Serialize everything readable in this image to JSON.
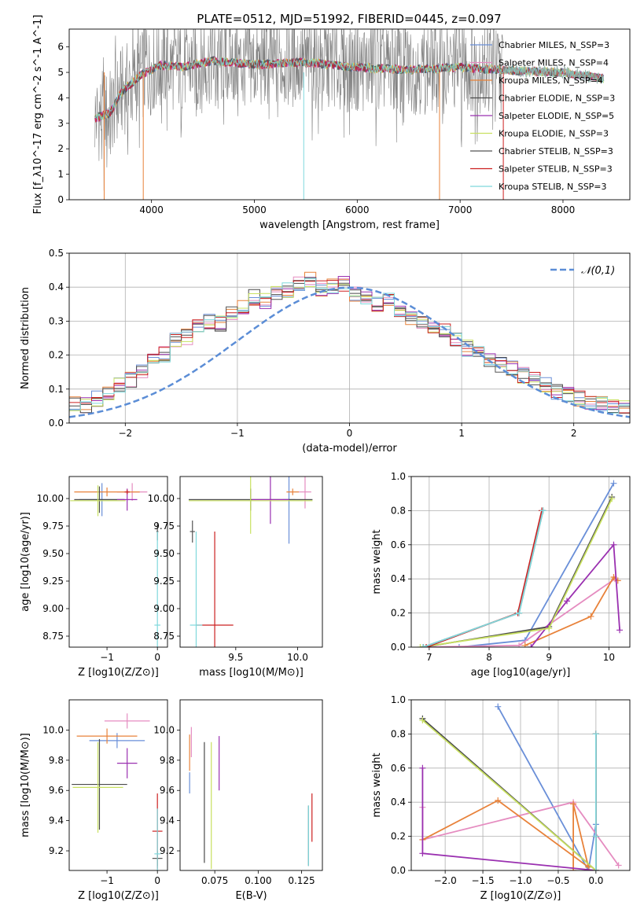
{
  "figure": {
    "title": "PLATE=0512, MJD=51992, FIBERID=0445, z=0.097"
  },
  "colors": {
    "model_1": "#6a8fd8",
    "model_2": "#e58cc0",
    "model_3": "#e8823a",
    "model_4": "#4a4a4a",
    "model_5": "#9a30b0",
    "model_6": "#c8e060",
    "model_7": "#555555",
    "model_8": "#cc2020",
    "model_9": "#7fd8dc",
    "data": "#808080"
  },
  "chart_data": [
    {
      "id": "spectrum",
      "type": "line",
      "xlabel": "wavelength [Angstrom, rest frame]",
      "ylabel": "Flux [f_λ10^-17 erg cm^-2 s^-1 A^-1]",
      "xlim": [
        3200,
        8650
      ],
      "ylim": [
        0,
        6.7
      ],
      "xticks": [
        4000,
        5000,
        6000,
        7000,
        8000
      ],
      "yticks": [
        0,
        1,
        2,
        3,
        4,
        5,
        6
      ],
      "legend_position": "top-right",
      "continuum": [
        [
          3450,
          3.2
        ],
        [
          3600,
          3.4
        ],
        [
          3700,
          4.2
        ],
        [
          3900,
          4.9
        ],
        [
          4100,
          5.3
        ],
        [
          4300,
          5.2
        ],
        [
          4600,
          5.45
        ],
        [
          5000,
          5.3
        ],
        [
          5500,
          5.4
        ],
        [
          6000,
          5.2
        ],
        [
          6500,
          5.1
        ],
        [
          7000,
          5.2
        ],
        [
          7500,
          5.05
        ],
        [
          8000,
          5.0
        ],
        [
          8400,
          4.75
        ]
      ],
      "series": [
        {
          "name": "Chabrier MILES, N_SSP=3",
          "color_key": "model_1"
        },
        {
          "name": "Salpeter MILES, N_SSP=4",
          "color_key": "model_2"
        },
        {
          "name": "Kroupa MILES, N_SSP=4",
          "color_key": "model_3"
        },
        {
          "name": "Chabrier ELODIE, N_SSP=3",
          "color_key": "model_4"
        },
        {
          "name": "Salpeter ELODIE, N_SSP=5",
          "color_key": "model_5"
        },
        {
          "name": "Kroupa ELODIE, N_SSP=3",
          "color_key": "model_6"
        },
        {
          "name": "Chabrier STELIB, N_SSP=3",
          "color_key": "model_7"
        },
        {
          "name": "Salpeter STELIB, N_SSP=3",
          "color_key": "model_8"
        },
        {
          "name": "Kroupa STELIB, N_SSP=3",
          "color_key": "model_9"
        }
      ],
      "drop_lines": [
        [
          3540,
          "model_3"
        ],
        [
          3920,
          "model_3"
        ],
        [
          5480,
          "model_9"
        ],
        [
          6800,
          "model_3"
        ],
        [
          7420,
          "model_8"
        ]
      ]
    },
    {
      "id": "residuals",
      "type": "line",
      "xlabel": "(data-model)/error",
      "ylabel": "Normed distribution",
      "xlim": [
        -2.5,
        2.5
      ],
      "ylim": [
        0,
        0.5
      ],
      "xticks": [
        -2,
        -1,
        0,
        1,
        2
      ],
      "yticks": [
        0.0,
        0.1,
        0.2,
        0.3,
        0.4,
        0.5
      ],
      "grid": true,
      "legend_position": "top-right",
      "reference": {
        "name": "𝒩(0,1)",
        "mean": 0,
        "sigma": 1
      },
      "bin_width": 0.1,
      "hist_base": [
        0.02,
        0.025,
        0.03,
        0.035,
        0.05,
        0.06,
        0.055,
        0.07,
        0.09,
        0.11,
        0.13,
        0.155,
        0.18,
        0.2,
        0.24,
        0.255,
        0.28,
        0.3,
        0.29,
        0.32,
        0.34,
        0.37,
        0.36,
        0.38,
        0.39,
        0.41,
        0.42,
        0.395,
        0.4,
        0.41,
        0.38,
        0.37,
        0.35,
        0.36,
        0.33,
        0.31,
        0.3,
        0.28,
        0.27,
        0.24,
        0.22,
        0.2,
        0.185,
        0.17,
        0.16,
        0.14,
        0.13,
        0.11,
        0.09,
        0.08,
        0.07,
        0.065,
        0.06,
        0.05,
        0.045,
        0.04,
        0.035,
        0.03,
        0.03,
        0.025
      ]
    },
    {
      "id": "age_vs_Z",
      "type": "scatter",
      "xlabel": "Z [log10(Z/Z⊙)]",
      "ylabel": "age  [log10(age/yr)]",
      "xlim": [
        -1.75,
        0.2
      ],
      "ylim": [
        8.65,
        10.2
      ],
      "xticks": [
        -1,
        0
      ],
      "yticks": [
        8.75,
        9.0,
        9.25,
        9.5,
        9.75,
        10.0
      ],
      "points": [
        {
          "c": "model_1",
          "x": -1.1,
          "y": 9.99,
          "xe": 0.45,
          "ye": 0.15
        },
        {
          "c": "model_2",
          "x": -0.5,
          "y": 10.06,
          "xe": 0.3,
          "ye": 0.08
        },
        {
          "c": "model_3",
          "x": -1.0,
          "y": 10.06,
          "xe": 0.65,
          "ye": 0.04
        },
        {
          "c": "model_4",
          "x": -1.15,
          "y": 9.99,
          "xe": 0.5,
          "ye": 0.12
        },
        {
          "c": "model_5",
          "x": -0.6,
          "y": 9.99,
          "xe": 0.2,
          "ye": 0.1
        },
        {
          "c": "model_6",
          "x": -1.18,
          "y": 9.98,
          "xe": 0.55,
          "ye": 0.14
        },
        {
          "c": "model_7",
          "x": 0.0,
          "y": 9.7,
          "xe": 0.02,
          "ye": 0.08
        },
        {
          "c": "model_8",
          "x": -0.6,
          "y": 10.06,
          "xe": 0.05,
          "ye": 0.02
        },
        {
          "c": "model_9",
          "x": 0.0,
          "y": 8.85,
          "xe": 0.06,
          "ye": 0.85
        }
      ]
    },
    {
      "id": "age_vs_mass",
      "type": "scatter",
      "xlabel": "mass [log10(M/M⊙)]",
      "ylabel": "",
      "xlim": [
        9.05,
        10.2
      ],
      "ylim": [
        8.65,
        10.2
      ],
      "xticks": [
        9.5,
        10.0
      ],
      "yticks": [
        8.75,
        9.0,
        9.25,
        9.5,
        9.75,
        10.0
      ],
      "points": [
        {
          "c": "model_1",
          "x": 9.93,
          "y": 9.99,
          "xe": 0.05,
          "ye": 0.4
        },
        {
          "c": "model_2",
          "x": 10.06,
          "y": 10.06,
          "xe": 0.05,
          "ye": 0.15
        },
        {
          "c": "model_3",
          "x": 9.96,
          "y": 10.06,
          "xe": 0.05,
          "ye": 0.03
        },
        {
          "c": "model_4",
          "x": 9.62,
          "y": 9.99,
          "xe": 0.5,
          "ye": 0.1
        },
        {
          "c": "model_5",
          "x": 9.78,
          "y": 9.99,
          "xe": 0.15,
          "ye": 0.22
        },
        {
          "c": "model_6",
          "x": 9.62,
          "y": 9.98,
          "xe": 0.5,
          "ye": 0.3
        },
        {
          "c": "model_7",
          "x": 9.15,
          "y": 9.7,
          "xe": 0.02,
          "ye": 0.1
        },
        {
          "c": "model_8",
          "x": 9.33,
          "y": 8.85,
          "xe": 0.15,
          "ye": 0.85
        },
        {
          "c": "model_9",
          "x": 9.18,
          "y": 8.85,
          "xe": 0.05,
          "ye": 0.85
        }
      ]
    },
    {
      "id": "weight_vs_age",
      "type": "line",
      "xlabel": "age  [log10(age/yr)]",
      "ylabel": "mass weight",
      "xlim": [
        6.7,
        10.35
      ],
      "ylim": [
        0,
        1.0
      ],
      "xticks": [
        7,
        8,
        9,
        10
      ],
      "yticks": [
        0.0,
        0.2,
        0.4,
        0.6,
        0.8,
        1.0
      ],
      "grid": true,
      "series": [
        {
          "c": "model_1",
          "pts": [
            [
              7.5,
              0.0
            ],
            [
              8.6,
              0.04
            ],
            [
              10.08,
              0.96
            ]
          ]
        },
        {
          "c": "model_2",
          "pts": [
            [
              6.9,
              0.0
            ],
            [
              8.5,
              0.01
            ],
            [
              10.1,
              0.4
            ]
          ]
        },
        {
          "c": "model_3",
          "pts": [
            [
              8.6,
              0.01
            ],
            [
              9.7,
              0.18
            ],
            [
              10.08,
              0.41
            ],
            [
              10.15,
              0.39
            ]
          ]
        },
        {
          "c": "model_4",
          "pts": [
            [
              6.9,
              0.0
            ],
            [
              9.0,
              0.12
            ],
            [
              10.05,
              0.88
            ]
          ]
        },
        {
          "c": "model_5",
          "pts": [
            [
              8.7,
              0.0
            ],
            [
              9.3,
              0.27
            ],
            [
              10.08,
              0.6
            ],
            [
              10.18,
              0.1
            ]
          ]
        },
        {
          "c": "model_6",
          "pts": [
            [
              6.85,
              0.0
            ],
            [
              9.0,
              0.11
            ],
            [
              10.05,
              0.87
            ]
          ]
        },
        {
          "c": "model_7",
          "pts": [
            [
              6.9,
              0.0
            ],
            [
              8.5,
              0.2
            ],
            [
              8.9,
              0.8
            ]
          ]
        },
        {
          "c": "model_8",
          "pts": [
            [
              6.95,
              0.0
            ],
            [
              8.48,
              0.2
            ],
            [
              8.88,
              0.8
            ]
          ]
        },
        {
          "c": "model_9",
          "pts": [
            [
              6.9,
              0.0
            ],
            [
              8.5,
              0.2
            ],
            [
              8.9,
              0.8
            ]
          ]
        }
      ]
    },
    {
      "id": "mass_vs_Z",
      "type": "scatter",
      "xlabel": "Z [log10(Z/Z⊙)]",
      "ylabel": "mass [log10(M/M⊙)]",
      "xlim": [
        -1.75,
        0.2
      ],
      "ylim": [
        9.07,
        10.2
      ],
      "xticks": [
        -1,
        0
      ],
      "yticks": [
        9.2,
        9.4,
        9.6,
        9.8,
        10.0
      ],
      "points": [
        {
          "c": "model_1",
          "x": -0.8,
          "y": 9.93,
          "xe": 0.55,
          "ye": 0.05
        },
        {
          "c": "model_2",
          "x": -0.6,
          "y": 10.06,
          "xe": 0.45,
          "ye": 0.05
        },
        {
          "c": "model_3",
          "x": -1.0,
          "y": 9.96,
          "xe": 0.6,
          "ye": 0.05
        },
        {
          "c": "model_4",
          "x": -1.15,
          "y": 9.64,
          "xe": 0.55,
          "ye": 0.3
        },
        {
          "c": "model_5",
          "x": -0.6,
          "y": 9.78,
          "xe": 0.2,
          "ye": 0.1
        },
        {
          "c": "model_6",
          "x": -1.18,
          "y": 9.62,
          "xe": 0.5,
          "ye": 0.3
        },
        {
          "c": "model_7",
          "x": 0.0,
          "y": 9.15,
          "xe": 0.1,
          "ye": 0.05
        },
        {
          "c": "model_8",
          "x": 0.0,
          "y": 9.33,
          "xe": 0.1,
          "ye": 0.25
        },
        {
          "c": "model_9",
          "x": 0.0,
          "y": 9.18,
          "xe": 0.06,
          "ye": 0.3
        }
      ]
    },
    {
      "id": "mass_vs_EBV",
      "type": "scatter",
      "xlabel": "E(B-V)",
      "ylabel": "",
      "xlim": [
        0.055,
        0.137
      ],
      "ylim": [
        9.07,
        10.2
      ],
      "xticks": [
        0.075,
        0.1,
        0.125
      ],
      "xtick_labels": [
        "0.075",
        "0.100",
        "0.125"
      ],
      "yticks": [
        9.2,
        9.4,
        9.6,
        9.8,
        10.0
      ],
      "points": [
        {
          "c": "model_1",
          "x": 0.0605,
          "y": 9.65,
          "xe": 0,
          "ye": 0.07
        },
        {
          "c": "model_2",
          "x": 0.0615,
          "y": 9.92,
          "xe": 0,
          "ye": 0.1
        },
        {
          "c": "model_3",
          "x": 0.0605,
          "y": 9.85,
          "xe": 0,
          "ye": 0.12
        },
        {
          "c": "model_4",
          "x": 0.069,
          "y": 9.52,
          "xe": 0,
          "ye": 0.4
        },
        {
          "c": "model_5",
          "x": 0.0775,
          "y": 9.78,
          "xe": 0,
          "ye": 0.18
        },
        {
          "c": "model_6",
          "x": 0.073,
          "y": 9.5,
          "xe": 0,
          "ye": 0.42
        },
        {
          "c": "model_7",
          "x": 0.129,
          "y": 9.3,
          "xe": 0,
          "ye": 0.2
        },
        {
          "c": "model_8",
          "x": 0.131,
          "y": 9.42,
          "xe": 0,
          "ye": 0.16
        },
        {
          "c": "model_9",
          "x": 0.129,
          "y": 9.3,
          "xe": 0,
          "ye": 0.2
        }
      ]
    },
    {
      "id": "weight_vs_Z",
      "type": "line",
      "xlabel": "Z [log10(Z/Z⊙)]",
      "ylabel": "mass weight",
      "xlim": [
        -2.45,
        0.45
      ],
      "ylim": [
        0,
        1.0
      ],
      "xticks": [
        -2.0,
        -1.5,
        -1.0,
        -0.5,
        0.0
      ],
      "yticks": [
        0.0,
        0.2,
        0.4,
        0.6,
        0.8,
        1.0
      ],
      "grid": true,
      "series": [
        {
          "c": "model_1",
          "pts": [
            [
              -1.3,
              0.96
            ],
            [
              -0.1,
              0.0
            ],
            [
              0.0,
              0.27
            ]
          ]
        },
        {
          "c": "model_2",
          "pts": [
            [
              -2.3,
              0.37
            ],
            [
              -2.3,
              0.18
            ],
            [
              -0.3,
              0.4
            ],
            [
              0.3,
              0.03
            ]
          ]
        },
        {
          "c": "model_3",
          "pts": [
            [
              -2.3,
              0.18
            ],
            [
              -1.3,
              0.41
            ],
            [
              -0.1,
              0.02
            ],
            [
              -0.3,
              0.39
            ],
            [
              -0.3,
              0.0
            ]
          ]
        },
        {
          "c": "model_4",
          "pts": [
            [
              -2.3,
              0.89
            ],
            [
              0.0,
              0.0
            ]
          ]
        },
        {
          "c": "model_5",
          "pts": [
            [
              -2.3,
              0.6
            ],
            [
              -2.3,
              0.1
            ],
            [
              0.0,
              0.0
            ]
          ]
        },
        {
          "c": "model_6",
          "pts": [
            [
              -2.3,
              0.88
            ],
            [
              0.0,
              0.0
            ]
          ]
        },
        {
          "c": "model_7",
          "pts": [
            [
              0.0,
              0.8
            ],
            [
              0.0,
              0.2
            ],
            [
              0.0,
              0.0
            ]
          ]
        },
        {
          "c": "model_8",
          "pts": [
            [
              0.0,
              0.8
            ],
            [
              0.0,
              0.2
            ],
            [
              0.0,
              0.0
            ]
          ]
        },
        {
          "c": "model_9",
          "pts": [
            [
              0.0,
              0.8
            ],
            [
              0.0,
              0.2
            ],
            [
              0.0,
              0.0
            ]
          ]
        }
      ]
    }
  ]
}
